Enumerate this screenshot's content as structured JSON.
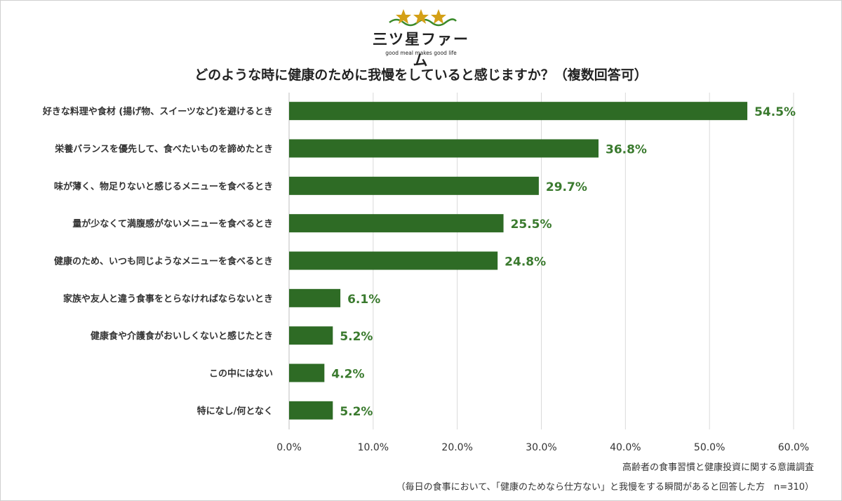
{
  "logo": {
    "name": "三ツ星ファーム",
    "tagline": "good meal makes good life",
    "star_color": "#d4a017",
    "wave_color": "#3a8a2a"
  },
  "chart_data": {
    "type": "bar",
    "orientation": "horizontal",
    "title": "どのような時に健康のために我慢をしていると感じますか？（複数回答可）",
    "categories": [
      "好きな料理や食材 (揚げ物、スイーツなど)を避けるとき",
      "栄養バランスを優先して、食べたいものを諦めたとき",
      "味が薄く、物足りないと感じるメニューを食べるとき",
      "量が少なくて満腹感がないメニューを食べるとき",
      "健康のため、いつも同じようなメニューを食べるとき",
      "家族や友人と違う食事をとらなければならないとき",
      "健康食や介護食がおいしくないと感じたとき",
      "この中にはない",
      "特になし/何となく"
    ],
    "values": [
      54.5,
      36.8,
      29.7,
      25.5,
      24.8,
      6.1,
      5.2,
      4.2,
      5.2
    ],
    "data_labels": [
      "54.5%",
      "36.8%",
      "29.7%",
      "25.5%",
      "24.8%",
      "6.1%",
      "5.2%",
      "4.2%",
      "5.2%"
    ],
    "xlim": [
      0,
      60
    ],
    "x_ticks": [
      "0.0%",
      "10.0%",
      "20.0%",
      "30.0%",
      "40.0%",
      "50.0%",
      "60.0%"
    ],
    "grid": "vertical",
    "bar_color": "#2e6b25",
    "label_color": "#3a7a2e"
  },
  "source": {
    "line1": "高齢者の食事習慣と健康投資に関する意識調査",
    "line2": "（毎日の食事において、「健康のためなら仕方ない」と我慢をする瞬間があると回答した方　n=310）"
  }
}
